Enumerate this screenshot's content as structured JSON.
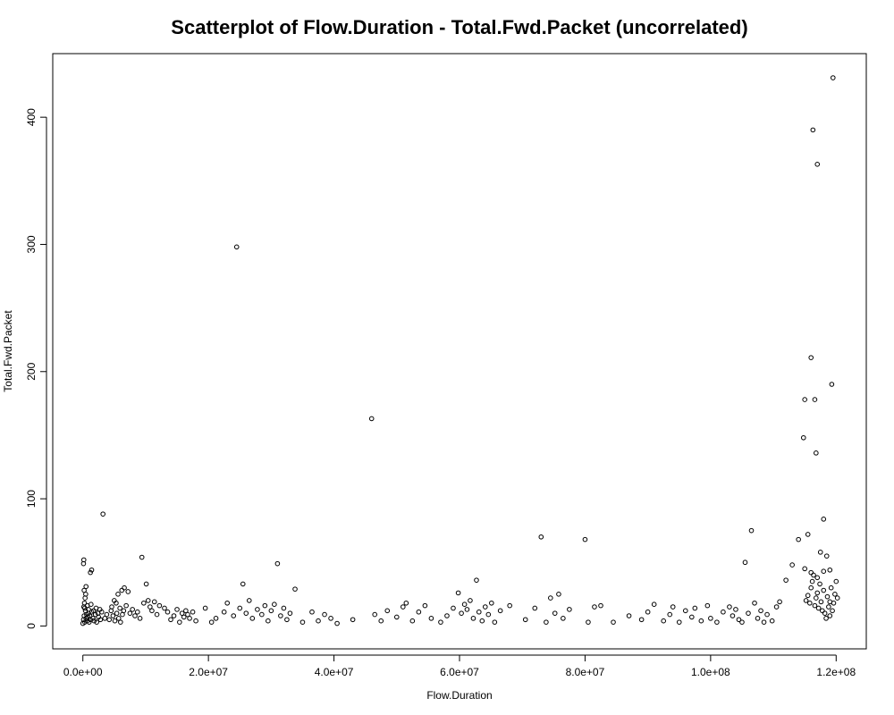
{
  "chart_data": {
    "type": "scatter",
    "title": "Scatterplot of Flow.Duration - Total.Fwd.Packet (uncorrelated)",
    "xlabel": "Flow.Duration",
    "ylabel": "Total.Fwd.Packet",
    "xlim": [
      -4800000,
      124800000
    ],
    "ylim": [
      -18,
      450
    ],
    "x_ticks": [
      0,
      20000000,
      40000000,
      60000000,
      80000000,
      100000000,
      120000000
    ],
    "x_tick_labels": [
      "0.0e+00",
      "2.0e+07",
      "4.0e+07",
      "6.0e+07",
      "8.0e+07",
      "1.0e+08",
      "1.2e+08"
    ],
    "y_ticks": [
      0,
      100,
      200,
      300,
      400
    ],
    "y_tick_labels": [
      "0",
      "100",
      "200",
      "300",
      "400"
    ],
    "grid": false,
    "legend": "none",
    "marker": "open-circle",
    "points": [
      [
        0,
        2
      ],
      [
        100000,
        5
      ],
      [
        200000,
        8
      ],
      [
        300000,
        3
      ],
      [
        400000,
        12
      ],
      [
        500000,
        6
      ],
      [
        600000,
        9
      ],
      [
        700000,
        4
      ],
      [
        800000,
        7
      ],
      [
        900000,
        10
      ],
      [
        1000000,
        3
      ],
      [
        1100000,
        8
      ],
      [
        1200000,
        5
      ],
      [
        1400000,
        11
      ],
      [
        1600000,
        6
      ],
      [
        1800000,
        4
      ],
      [
        2000000,
        9
      ],
      [
        2200000,
        3
      ],
      [
        2500000,
        7
      ],
      [
        2800000,
        5
      ],
      [
        150000,
        15
      ],
      [
        250000,
        18
      ],
      [
        350000,
        22
      ],
      [
        450000,
        25
      ],
      [
        200000,
        28
      ],
      [
        500000,
        31
      ],
      [
        100000,
        49
      ],
      [
        150000,
        52
      ],
      [
        1200000,
        42
      ],
      [
        1400000,
        44
      ],
      [
        3200000,
        88
      ],
      [
        300000,
        14
      ],
      [
        700000,
        16
      ],
      [
        900000,
        13
      ],
      [
        1300000,
        17
      ],
      [
        1700000,
        12
      ],
      [
        2100000,
        14
      ],
      [
        2400000,
        10
      ],
      [
        2700000,
        13
      ],
      [
        3000000,
        11
      ],
      [
        3500000,
        6
      ],
      [
        3800000,
        9
      ],
      [
        4200000,
        5
      ],
      [
        4500000,
        12
      ],
      [
        4800000,
        8
      ],
      [
        5100000,
        4
      ],
      [
        5400000,
        10
      ],
      [
        5700000,
        6
      ],
      [
        6000000,
        3
      ],
      [
        6300000,
        9
      ],
      [
        4600000,
        15
      ],
      [
        5000000,
        20
      ],
      [
        5600000,
        25
      ],
      [
        6200000,
        28
      ],
      [
        6600000,
        30
      ],
      [
        5300000,
        18
      ],
      [
        5900000,
        14
      ],
      [
        6500000,
        12
      ],
      [
        6900000,
        16
      ],
      [
        7200000,
        27
      ],
      [
        7500000,
        10
      ],
      [
        7900000,
        13
      ],
      [
        8300000,
        8
      ],
      [
        8700000,
        11
      ],
      [
        9100000,
        6
      ],
      [
        9400000,
        54
      ],
      [
        9700000,
        18
      ],
      [
        10100000,
        33
      ],
      [
        10400000,
        20
      ],
      [
        10700000,
        15
      ],
      [
        11000000,
        12
      ],
      [
        11400000,
        19
      ],
      [
        11800000,
        9
      ],
      [
        12200000,
        16
      ],
      [
        13000000,
        14
      ],
      [
        13500000,
        11
      ],
      [
        14000000,
        5
      ],
      [
        14500000,
        8
      ],
      [
        15000000,
        13
      ],
      [
        15400000,
        3
      ],
      [
        15800000,
        10
      ],
      [
        16100000,
        7
      ],
      [
        16400000,
        12
      ],
      [
        16700000,
        9
      ],
      [
        17000000,
        6
      ],
      [
        17500000,
        11
      ],
      [
        18000000,
        4
      ],
      [
        19500000,
        14
      ],
      [
        20500000,
        3
      ],
      [
        21200000,
        6
      ],
      [
        22500000,
        11
      ],
      [
        23000000,
        18
      ],
      [
        24000000,
        8
      ],
      [
        24500000,
        298
      ],
      [
        25000000,
        14
      ],
      [
        25500000,
        33
      ],
      [
        26000000,
        10
      ],
      [
        26500000,
        20
      ],
      [
        27000000,
        6
      ],
      [
        27800000,
        13
      ],
      [
        28500000,
        9
      ],
      [
        29000000,
        16
      ],
      [
        29500000,
        4
      ],
      [
        30000000,
        12
      ],
      [
        30500000,
        17
      ],
      [
        31000000,
        49
      ],
      [
        31500000,
        8
      ],
      [
        32000000,
        14
      ],
      [
        32500000,
        5
      ],
      [
        33000000,
        10
      ],
      [
        33800000,
        29
      ],
      [
        35000000,
        3
      ],
      [
        36500000,
        11
      ],
      [
        37500000,
        4
      ],
      [
        38500000,
        9
      ],
      [
        39500000,
        6
      ],
      [
        40500000,
        2
      ],
      [
        43000000,
        5
      ],
      [
        46000000,
        163
      ],
      [
        46500000,
        9
      ],
      [
        47500000,
        4
      ],
      [
        48500000,
        12
      ],
      [
        50000000,
        7
      ],
      [
        51000000,
        15
      ],
      [
        51500000,
        18
      ],
      [
        52500000,
        4
      ],
      [
        53500000,
        11
      ],
      [
        54500000,
        16
      ],
      [
        55500000,
        6
      ],
      [
        57000000,
        3
      ],
      [
        58000000,
        8
      ],
      [
        59000000,
        14
      ],
      [
        59800000,
        26
      ],
      [
        60300000,
        10
      ],
      [
        60800000,
        17
      ],
      [
        61200000,
        13
      ],
      [
        61700000,
        20
      ],
      [
        62200000,
        6
      ],
      [
        62700000,
        36
      ],
      [
        63100000,
        11
      ],
      [
        63600000,
        4
      ],
      [
        64100000,
        15
      ],
      [
        64600000,
        9
      ],
      [
        65100000,
        18
      ],
      [
        65600000,
        3
      ],
      [
        66500000,
        12
      ],
      [
        68000000,
        16
      ],
      [
        70500000,
        5
      ],
      [
        72000000,
        14
      ],
      [
        73000000,
        70
      ],
      [
        73800000,
        3
      ],
      [
        74500000,
        22
      ],
      [
        75200000,
        10
      ],
      [
        75800000,
        25
      ],
      [
        76500000,
        6
      ],
      [
        77500000,
        13
      ],
      [
        80000000,
        68
      ],
      [
        80500000,
        3
      ],
      [
        81500000,
        15
      ],
      [
        82500000,
        16
      ],
      [
        84500000,
        3
      ],
      [
        87000000,
        8
      ],
      [
        89000000,
        5
      ],
      [
        90000000,
        11
      ],
      [
        91000000,
        17
      ],
      [
        92500000,
        4
      ],
      [
        93500000,
        9
      ],
      [
        94000000,
        15
      ],
      [
        95000000,
        3
      ],
      [
        96000000,
        12
      ],
      [
        97000000,
        7
      ],
      [
        97500000,
        14
      ],
      [
        98500000,
        4
      ],
      [
        99500000,
        16
      ],
      [
        100000000,
        6
      ],
      [
        101000000,
        3
      ],
      [
        102000000,
        11
      ],
      [
        103000000,
        15
      ],
      [
        103500000,
        8
      ],
      [
        104000000,
        13
      ],
      [
        104500000,
        5
      ],
      [
        105000000,
        3
      ],
      [
        105500000,
        50
      ],
      [
        106000000,
        10
      ],
      [
        106500000,
        75
      ],
      [
        107000000,
        18
      ],
      [
        107500000,
        6
      ],
      [
        108000000,
        12
      ],
      [
        108500000,
        3
      ],
      [
        109000000,
        9
      ],
      [
        109800000,
        4
      ],
      [
        110500000,
        15
      ],
      [
        111000000,
        19
      ],
      [
        112000000,
        36
      ],
      [
        113000000,
        48
      ],
      [
        114000000,
        68
      ],
      [
        114800000,
        148
      ],
      [
        115000000,
        178
      ],
      [
        115500000,
        72
      ],
      [
        116000000,
        211
      ],
      [
        116300000,
        390
      ],
      [
        116600000,
        178
      ],
      [
        116800000,
        136
      ],
      [
        117000000,
        363
      ],
      [
        117500000,
        58
      ],
      [
        118000000,
        84
      ],
      [
        118500000,
        55
      ],
      [
        119000000,
        19
      ],
      [
        119300000,
        190
      ],
      [
        119500000,
        431
      ],
      [
        115200000,
        20
      ],
      [
        115500000,
        24
      ],
      [
        115800000,
        18
      ],
      [
        116000000,
        30
      ],
      [
        116200000,
        35
      ],
      [
        116400000,
        40
      ],
      [
        116600000,
        16
      ],
      [
        116800000,
        22
      ],
      [
        117000000,
        26
      ],
      [
        117200000,
        14
      ],
      [
        117400000,
        33
      ],
      [
        117600000,
        19
      ],
      [
        117800000,
        12
      ],
      [
        118000000,
        28
      ],
      [
        118200000,
        10
      ],
      [
        118400000,
        6
      ],
      [
        118600000,
        23
      ],
      [
        118800000,
        15
      ],
      [
        119000000,
        8
      ],
      [
        119200000,
        30
      ],
      [
        119400000,
        12
      ],
      [
        119600000,
        18
      ],
      [
        119800000,
        25
      ],
      [
        120000000,
        35
      ],
      [
        120200000,
        22
      ],
      [
        115000000,
        45
      ],
      [
        116000000,
        42
      ],
      [
        117000000,
        38
      ],
      [
        118000000,
        43
      ],
      [
        119000000,
        44
      ]
    ]
  }
}
